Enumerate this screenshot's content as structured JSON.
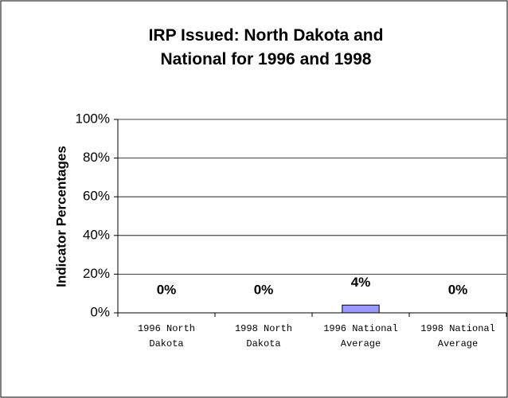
{
  "chart_data": {
    "type": "bar",
    "title": "IRP Issued: North Dakota and National for 1996 and 1998",
    "ylabel": "Indicator Percentages",
    "categories": [
      "1996 North Dakota",
      "1998 North Dakota",
      "1996 National Average",
      "1998 National Average"
    ],
    "values": [
      0,
      0,
      4,
      0
    ],
    "value_labels": [
      "0%",
      "0%",
      "4%",
      "0%"
    ],
    "color": "#9999ff",
    "ylim": [
      0,
      100
    ],
    "yticks": [
      {
        "value": 0,
        "label": "0%"
      },
      {
        "value": 20,
        "label": "20%"
      },
      {
        "value": 40,
        "label": "40%"
      },
      {
        "value": 60,
        "label": "60%"
      },
      {
        "value": 80,
        "label": "80%"
      },
      {
        "value": 100,
        "label": "100%"
      }
    ],
    "grid": true
  }
}
